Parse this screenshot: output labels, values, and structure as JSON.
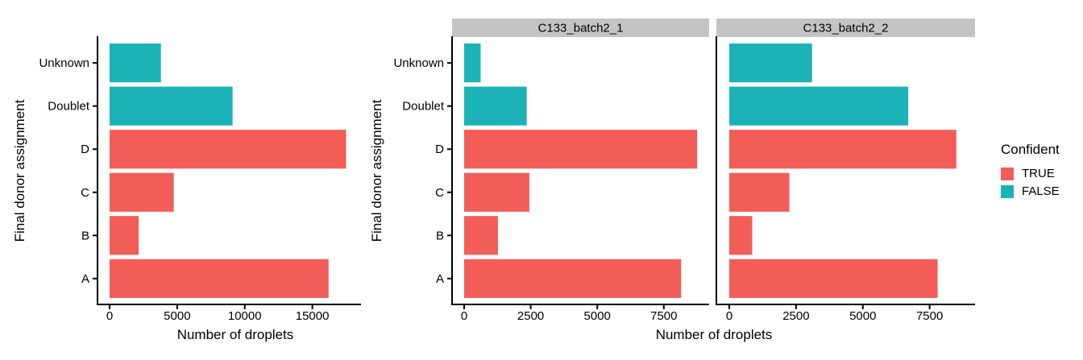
{
  "palette": {
    "confident_true": "#F25D58",
    "confident_false": "#1BB3B7",
    "strip_background": "#C4C4C4",
    "strip_text": "#1A1A1A",
    "axis_color": "#000000",
    "text_color": "#000000"
  },
  "legend": {
    "title": "Confident",
    "entries": [
      {
        "label": "TRUE",
        "value": true
      },
      {
        "label": "FALSE",
        "value": false
      }
    ],
    "position": "right"
  },
  "chart_data": [
    {
      "type": "bar",
      "orientation": "horizontal",
      "panel": "single",
      "title": "",
      "xlabel": "Number of droplets",
      "ylabel": "Final donor assignment",
      "categories_top_to_bottom": [
        "Unknown",
        "Doublet",
        "D",
        "C",
        "B",
        "A"
      ],
      "confident": [
        false,
        false,
        true,
        true,
        true,
        true
      ],
      "values": [
        3800,
        9100,
        17500,
        4750,
        2150,
        16200
      ],
      "xticks": [
        0,
        5000,
        10000,
        15000
      ],
      "xlim": [
        0,
        18600
      ],
      "grid": false,
      "theme": "classic"
    },
    {
      "type": "bar",
      "orientation": "horizontal",
      "panel": "faceted",
      "title": "",
      "xlabel": "Number of droplets",
      "ylabel": "Final donor assignment",
      "categories_top_to_bottom": [
        "Unknown",
        "Doublet",
        "D",
        "C",
        "B",
        "A"
      ],
      "confident": [
        false,
        false,
        true,
        true,
        true,
        true
      ],
      "facets": [
        {
          "label": "C133_batch2_1",
          "values": [
            620,
            2350,
            8750,
            2450,
            1270,
            8150
          ]
        },
        {
          "label": "C133_batch2_2",
          "values": [
            3100,
            6700,
            8500,
            2250,
            860,
            7800
          ]
        }
      ],
      "xticks": [
        0,
        2500,
        5000,
        7500
      ],
      "xlim": [
        0,
        9200
      ],
      "grid": false,
      "theme": "classic"
    }
  ]
}
